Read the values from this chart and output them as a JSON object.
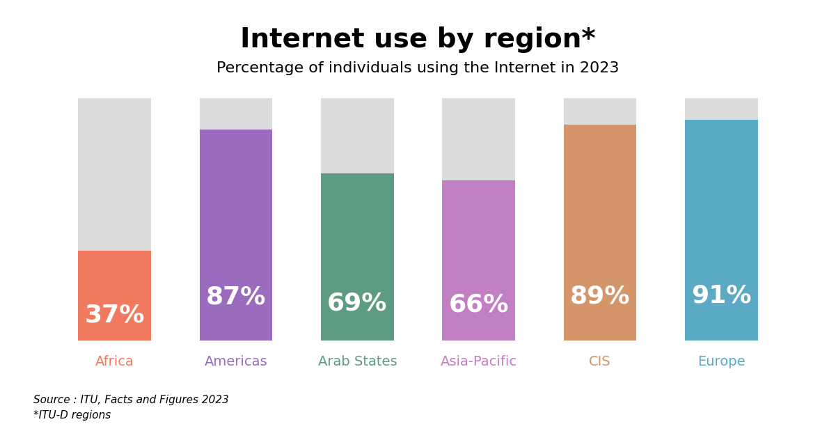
{
  "title": "Internet use by region*",
  "subtitle": "Percentage of individuals using the Internet in 2023",
  "source_line1": "Source : ITU, Facts and Figures 2023",
  "source_line2": "*ITU-D regions",
  "categories": [
    "Africa",
    "Americas",
    "Arab States",
    "Asia-Pacific",
    "CIS",
    "Europe"
  ],
  "values": [
    37,
    87,
    69,
    66,
    89,
    91
  ],
  "bar_colors": [
    "#F07A5F",
    "#9B6BBD",
    "#5D9B82",
    "#C37FC4",
    "#D4956A",
    "#5BAAC4"
  ],
  "label_colors": [
    "#F07A5F",
    "#9B6BBD",
    "#5D9B82",
    "#C37FC4",
    "#D4956A",
    "#5BAAC4"
  ],
  "bg_color": "#FFFFFF",
  "gray_color": "#DCDCDC",
  "bar_width": 0.6,
  "figsize": [
    12.01,
    6.29
  ],
  "dpi": 100
}
